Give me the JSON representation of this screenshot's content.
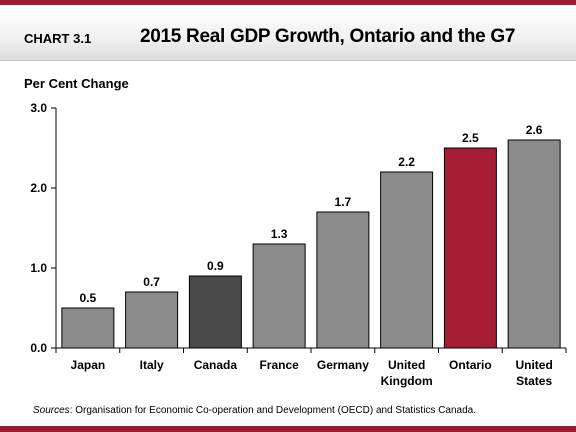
{
  "header": {
    "chart_label": "CHART 3.1",
    "title": "2015 Real GDP Growth, Ontario and the G7"
  },
  "colors": {
    "accent": "#9e1a2e",
    "bar_default": "#8c8c8c",
    "bar_canada": "#4a4a4a",
    "bar_ontario": "#a51d33"
  },
  "chart_data": {
    "type": "bar",
    "title": "2015 Real GDP Growth, Ontario and the G7",
    "ylabel": "Per Cent Change",
    "xlabel": "",
    "ylim": [
      0,
      3.0
    ],
    "yticks": [
      "0.0",
      "1.0",
      "2.0",
      "3.0"
    ],
    "grid": false,
    "categories": [
      [
        "Japan"
      ],
      [
        "Italy"
      ],
      [
        "Canada"
      ],
      [
        "France"
      ],
      [
        "Germany"
      ],
      [
        "United",
        "Kingdom"
      ],
      [
        "Ontario"
      ],
      [
        "United",
        "States"
      ]
    ],
    "values": [
      0.5,
      0.7,
      0.9,
      1.3,
      1.7,
      2.2,
      2.5,
      2.6
    ],
    "value_labels": [
      "0.5",
      "0.7",
      "0.9",
      "1.3",
      "1.7",
      "2.2",
      "2.5",
      "2.6"
    ],
    "bar_colors": [
      "#8c8c8c",
      "#8c8c8c",
      "#4a4a4a",
      "#8c8c8c",
      "#8c8c8c",
      "#8c8c8c",
      "#a51d33",
      "#8c8c8c"
    ]
  },
  "source": {
    "label": "Sources",
    "text": ": Organisation for Economic Co-operation and Development (OECD) and Statistics  Canada."
  }
}
